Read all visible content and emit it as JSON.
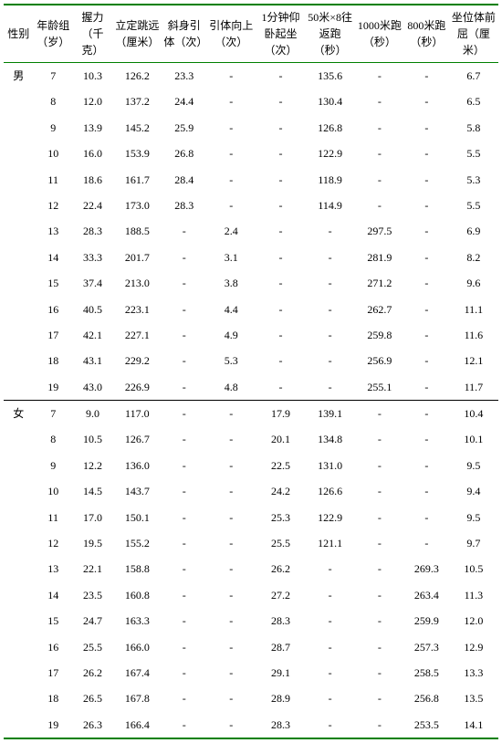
{
  "columns": [
    {
      "label": "性别",
      "class": "c0"
    },
    {
      "label": "年龄组（岁）",
      "class": "c1"
    },
    {
      "label": "握力（千克）",
      "class": "c2"
    },
    {
      "label": "立定跳远（厘米）",
      "class": "c3"
    },
    {
      "label": "斜身引体（次）",
      "class": "c4"
    },
    {
      "label": "引体向上（次）",
      "class": "c5"
    },
    {
      "label": "1分钟仰卧起坐（次）",
      "class": "c6"
    },
    {
      "label": "50米×8往返跑（秒）",
      "class": "c7"
    },
    {
      "label": "1000米跑（秒）",
      "class": "c8"
    },
    {
      "label": "800米跑（秒）",
      "class": "c9"
    },
    {
      "label": "坐位体前屈（厘米）",
      "class": "c10"
    }
  ],
  "groups": [
    {
      "sex": "男",
      "rows": [
        [
          "7",
          "10.3",
          "126.2",
          "23.3",
          "-",
          "-",
          "135.6",
          "-",
          "-",
          "6.7"
        ],
        [
          "8",
          "12.0",
          "137.2",
          "24.4",
          "-",
          "-",
          "130.4",
          "-",
          "-",
          "6.5"
        ],
        [
          "9",
          "13.9",
          "145.2",
          "25.9",
          "-",
          "-",
          "126.8",
          "-",
          "-",
          "5.8"
        ],
        [
          "10",
          "16.0",
          "153.9",
          "26.8",
          "-",
          "-",
          "122.9",
          "-",
          "-",
          "5.5"
        ],
        [
          "11",
          "18.6",
          "161.7",
          "28.4",
          "-",
          "-",
          "118.9",
          "-",
          "-",
          "5.3"
        ],
        [
          "12",
          "22.4",
          "173.0",
          "28.3",
          "-",
          "-",
          "114.9",
          "-",
          "-",
          "5.5"
        ],
        [
          "13",
          "28.3",
          "188.5",
          "-",
          "2.4",
          "-",
          "-",
          "297.5",
          "-",
          "6.9"
        ],
        [
          "14",
          "33.3",
          "201.7",
          "-",
          "3.1",
          "-",
          "-",
          "281.9",
          "-",
          "8.2"
        ],
        [
          "15",
          "37.4",
          "213.0",
          "-",
          "3.8",
          "-",
          "-",
          "271.2",
          "-",
          "9.6"
        ],
        [
          "16",
          "40.5",
          "223.1",
          "-",
          "4.4",
          "-",
          "-",
          "262.7",
          "-",
          "11.1"
        ],
        [
          "17",
          "42.1",
          "227.1",
          "-",
          "4.9",
          "-",
          "-",
          "259.8",
          "-",
          "11.6"
        ],
        [
          "18",
          "43.1",
          "229.2",
          "-",
          "5.3",
          "-",
          "-",
          "256.9",
          "-",
          "12.1"
        ],
        [
          "19",
          "43.0",
          "226.9",
          "-",
          "4.8",
          "-",
          "-",
          "255.1",
          "-",
          "11.7"
        ]
      ]
    },
    {
      "sex": "女",
      "rows": [
        [
          "7",
          "9.0",
          "117.0",
          "-",
          "-",
          "17.9",
          "139.1",
          "-",
          "-",
          "10.4"
        ],
        [
          "8",
          "10.5",
          "126.7",
          "-",
          "-",
          "20.1",
          "134.8",
          "-",
          "-",
          "10.1"
        ],
        [
          "9",
          "12.2",
          "136.0",
          "-",
          "-",
          "22.5",
          "131.0",
          "-",
          "-",
          "9.5"
        ],
        [
          "10",
          "14.5",
          "143.7",
          "-",
          "-",
          "24.2",
          "126.6",
          "-",
          "-",
          "9.4"
        ],
        [
          "11",
          "17.0",
          "150.1",
          "-",
          "-",
          "25.3",
          "122.9",
          "-",
          "-",
          "9.5"
        ],
        [
          "12",
          "19.5",
          "155.2",
          "-",
          "-",
          "25.5",
          "121.1",
          "-",
          "-",
          "9.7"
        ],
        [
          "13",
          "22.1",
          "158.8",
          "-",
          "-",
          "26.2",
          "-",
          "-",
          "269.3",
          "10.5"
        ],
        [
          "14",
          "23.5",
          "160.8",
          "-",
          "-",
          "27.2",
          "-",
          "-",
          "263.4",
          "11.3"
        ],
        [
          "15",
          "24.7",
          "163.3",
          "-",
          "-",
          "28.3",
          "-",
          "-",
          "259.9",
          "12.0"
        ],
        [
          "16",
          "25.5",
          "166.0",
          "-",
          "-",
          "28.7",
          "-",
          "-",
          "257.3",
          "12.9"
        ],
        [
          "17",
          "26.2",
          "167.4",
          "-",
          "-",
          "29.1",
          "-",
          "-",
          "258.5",
          "13.3"
        ],
        [
          "18",
          "26.5",
          "167.8",
          "-",
          "-",
          "28.9",
          "-",
          "-",
          "256.8",
          "13.5"
        ],
        [
          "19",
          "26.3",
          "166.4",
          "-",
          "-",
          "28.3",
          "-",
          "-",
          "253.5",
          "14.1"
        ]
      ]
    }
  ]
}
